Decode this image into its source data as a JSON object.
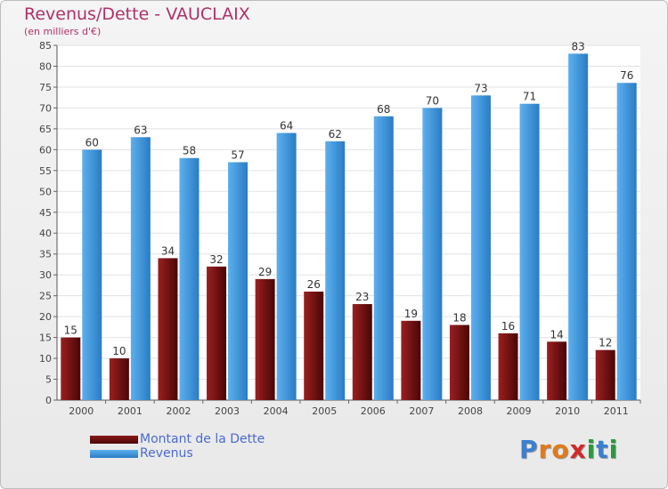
{
  "chart_data": {
    "type": "bar",
    "title": "Revenus/Dette - VAUCLAIX",
    "subtitle": "(en milliers d'€)",
    "categories": [
      "2000",
      "2001",
      "2002",
      "2003",
      "2004",
      "2005",
      "2006",
      "2007",
      "2008",
      "2009",
      "2010",
      "2011"
    ],
    "series": [
      {
        "name": "Montant de la Dette",
        "color": "#7a1010",
        "values": [
          15,
          10,
          34,
          32,
          29,
          26,
          23,
          19,
          18,
          16,
          14,
          12
        ]
      },
      {
        "name": "Revenus",
        "color": "#3d97dd",
        "values": [
          60,
          63,
          58,
          57,
          64,
          62,
          68,
          70,
          73,
          71,
          83,
          76
        ]
      }
    ],
    "ylim": [
      0,
      85
    ],
    "yticks": [
      0,
      5,
      10,
      15,
      20,
      25,
      30,
      35,
      40,
      45,
      50,
      55,
      60,
      65,
      70,
      75,
      80,
      85
    ],
    "grid": true,
    "data_labels": true,
    "legend_position": "bottom-left"
  },
  "logo": {
    "letters": [
      "P",
      "r",
      "o",
      "x",
      "i",
      "t",
      "i"
    ],
    "colors": [
      "#3a7fd0",
      "#e07a1a",
      "#e07a1a",
      "#d02a2a",
      "#2a9a3a",
      "#3a7fd0",
      "#2a9a3a"
    ]
  }
}
